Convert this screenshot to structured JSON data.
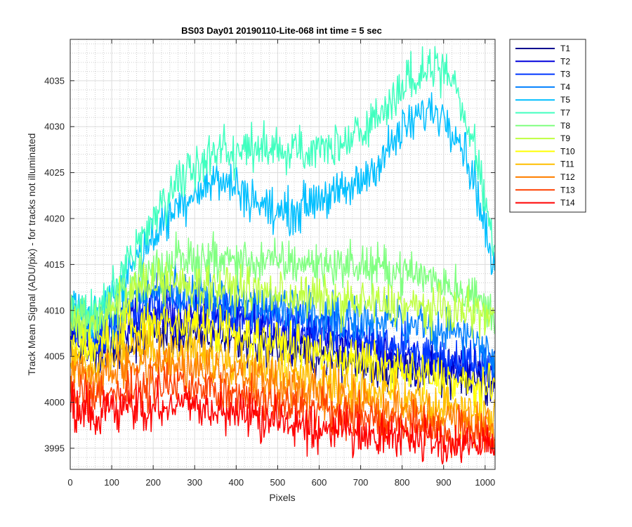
{
  "chart_data": {
    "type": "line",
    "title": "BS03 Day01 20190110-Lite-068 int time = 5 sec",
    "xlabel": "Pixels",
    "ylabel": "Track Mean Signal (ADU/pix) - for tracks not illuminated",
    "xlim": [
      0,
      1024
    ],
    "ylim": [
      3992.7,
      4039.5
    ],
    "x_ticks": [
      0,
      100,
      200,
      300,
      400,
      500,
      600,
      700,
      800,
      900,
      1000
    ],
    "y_ticks": [
      3995,
      4000,
      4005,
      4010,
      4015,
      4020,
      4025,
      4030,
      4035
    ],
    "grid": "major and minor",
    "legend_position": "outside-right",
    "noise_amplitude_approx": 1.2,
    "series": [
      {
        "name": "T1",
        "color": "#00008f",
        "x": [
          0,
          50,
          100,
          150,
          200,
          250,
          300,
          350,
          400,
          450,
          500,
          550,
          600,
          650,
          700,
          750,
          800,
          850,
          900,
          950,
          1000,
          1024
        ],
        "values": [
          4007.0,
          4004.5,
          4005.2,
          4006.5,
          4007.5,
          4007.5,
          4007.2,
          4007.0,
          4006.8,
          4006.3,
          4006.0,
          4005.5,
          4005.0,
          4004.7,
          4004.3,
          4004.0,
          4003.7,
          4003.4,
          4003.1,
          4002.8,
          4002.5,
          4002.3
        ]
      },
      {
        "name": "T2",
        "color": "#0000dc",
        "x": [
          0,
          50,
          100,
          150,
          200,
          250,
          300,
          350,
          400,
          450,
          500,
          550,
          600,
          650,
          700,
          750,
          800,
          850,
          900,
          950,
          1000,
          1024
        ],
        "values": [
          4008.0,
          4006.0,
          4007.0,
          4008.5,
          4009.5,
          4009.5,
          4009.3,
          4009.0,
          4008.8,
          4008.4,
          4008.0,
          4007.5,
          4007.0,
          4006.5,
          4006.0,
          4005.5,
          4005.0,
          4004.5,
          4004.0,
          4003.6,
          4003.2,
          4003.0
        ]
      },
      {
        "name": "T3",
        "color": "#0038ff",
        "x": [
          0,
          50,
          100,
          150,
          200,
          250,
          300,
          350,
          400,
          450,
          500,
          550,
          600,
          650,
          700,
          750,
          800,
          850,
          900,
          950,
          1000,
          1024
        ],
        "values": [
          4008.8,
          4007.0,
          4008.0,
          4009.8,
          4010.8,
          4010.8,
          4010.6,
          4010.3,
          4010.0,
          4009.5,
          4009.0,
          4008.5,
          4008.0,
          4007.5,
          4007.0,
          4006.5,
          4006.0,
          4005.5,
          4005.0,
          4004.5,
          4004.0,
          4003.8
        ]
      },
      {
        "name": "T4",
        "color": "#0080ff",
        "x": [
          0,
          50,
          100,
          150,
          200,
          250,
          300,
          350,
          400,
          450,
          500,
          550,
          600,
          650,
          700,
          750,
          800,
          850,
          900,
          950,
          1000,
          1024
        ],
        "values": [
          4009.5,
          4008.0,
          4009.0,
          4011.0,
          4012.0,
          4012.0,
          4011.8,
          4011.5,
          4011.2,
          4010.8,
          4010.4,
          4010.0,
          4009.6,
          4009.3,
          4009.0,
          4008.7,
          4008.4,
          4008.2,
          4008.0,
          4007.5,
          4006.0,
          4005.0
        ]
      },
      {
        "name": "T5",
        "color": "#00bfff",
        "x": [
          0,
          50,
          100,
          150,
          200,
          250,
          300,
          350,
          400,
          450,
          500,
          550,
          600,
          650,
          700,
          750,
          800,
          850,
          875,
          900,
          925,
          950,
          975,
          1000,
          1024
        ],
        "values": [
          4010.5,
          4009.0,
          4011.0,
          4015.0,
          4018.0,
          4021.0,
          4023.0,
          4024.2,
          4023.5,
          4021.8,
          4020.5,
          4021.0,
          4022.5,
          4022.5,
          4024.0,
          4026.5,
          4029.5,
          4031.5,
          4031.8,
          4031.2,
          4030.0,
          4027.5,
          4024.0,
          4019.0,
          4013.0
        ]
      },
      {
        "name": "T7",
        "color": "#40ffbf",
        "x": [
          0,
          50,
          100,
          150,
          200,
          250,
          300,
          350,
          400,
          450,
          500,
          550,
          600,
          650,
          700,
          750,
          800,
          850,
          875,
          900,
          925,
          950,
          975,
          1000,
          1024
        ],
        "values": [
          4010.5,
          4009.5,
          4012.0,
          4016.5,
          4020.0,
          4023.5,
          4026.0,
          4027.5,
          4027.5,
          4027.0,
          4027.3,
          4027.8,
          4028.0,
          4028.2,
          4029.5,
          4031.5,
          4034.0,
          4036.2,
          4036.6,
          4036.2,
          4034.5,
          4031.5,
          4027.5,
          4022.0,
          4016.0
        ]
      },
      {
        "name": "T8",
        "color": "#80ff80",
        "x": [
          0,
          50,
          100,
          150,
          200,
          250,
          300,
          350,
          400,
          450,
          500,
          550,
          600,
          650,
          700,
          750,
          800,
          850,
          900,
          950,
          1000,
          1024
        ],
        "values": [
          4009.5,
          4008.5,
          4010.5,
          4013.0,
          4014.5,
          4015.3,
          4015.5,
          4015.5,
          4015.5,
          4015.3,
          4015.2,
          4015.2,
          4015.0,
          4015.0,
          4014.8,
          4014.5,
          4014.2,
          4013.8,
          4013.2,
          4012.2,
          4010.5,
          4009.5
        ]
      },
      {
        "name": "T9",
        "color": "#bfff40",
        "x": [
          0,
          50,
          100,
          150,
          200,
          250,
          300,
          350,
          400,
          450,
          500,
          550,
          600,
          650,
          700,
          750,
          800,
          850,
          900,
          950,
          1000,
          1024
        ],
        "values": [
          4008.5,
          4008.0,
          4010.0,
          4012.0,
          4013.0,
          4013.0,
          4012.8,
          4012.5,
          4012.3,
          4012.0,
          4011.7,
          4011.5,
          4011.3,
          4011.0,
          4010.8,
          4010.6,
          4010.4,
          4010.2,
          4010.0,
          4009.8,
          4009.5,
          4009.3
        ]
      },
      {
        "name": "T10",
        "color": "#ffff00",
        "x": [
          0,
          50,
          100,
          150,
          200,
          250,
          300,
          350,
          400,
          450,
          500,
          550,
          600,
          650,
          700,
          750,
          800,
          850,
          900,
          950,
          1000,
          1024
        ],
        "values": [
          4006.0,
          4005.5,
          4006.8,
          4008.0,
          4008.6,
          4008.6,
          4008.4,
          4008.0,
          4007.5,
          4006.9,
          4006.4,
          4005.9,
          4005.4,
          4004.9,
          4004.4,
          4003.9,
          4003.4,
          4002.9,
          4002.4,
          4001.9,
          4001.4,
          4001.1
        ]
      },
      {
        "name": "T11",
        "color": "#ffbf00",
        "x": [
          0,
          50,
          100,
          150,
          200,
          250,
          300,
          350,
          400,
          450,
          500,
          550,
          600,
          650,
          700,
          750,
          800,
          850,
          900,
          950,
          1000,
          1024
        ],
        "values": [
          4004.5,
          4003.8,
          4004.8,
          4005.5,
          4005.8,
          4005.8,
          4005.5,
          4005.0,
          4004.5,
          4004.0,
          4003.5,
          4003.0,
          4002.5,
          4002.0,
          4001.5,
          4001.0,
          4000.5,
          4000.0,
          3999.6,
          3999.2,
          3998.8,
          3998.6
        ]
      },
      {
        "name": "T12",
        "color": "#ff8000",
        "x": [
          0,
          50,
          100,
          150,
          200,
          250,
          300,
          350,
          400,
          450,
          500,
          550,
          600,
          650,
          700,
          750,
          800,
          850,
          900,
          950,
          1000,
          1024
        ],
        "values": [
          4003.0,
          4002.5,
          4003.2,
          4003.8,
          4004.0,
          4004.0,
          4003.7,
          4003.3,
          4002.9,
          4002.5,
          4002.0,
          4001.5,
          4001.0,
          4000.5,
          4000.0,
          3999.5,
          3999.1,
          3998.7,
          3998.3,
          3997.9,
          3997.5,
          3997.3
        ]
      },
      {
        "name": "T13",
        "color": "#ff4000",
        "x": [
          0,
          50,
          100,
          150,
          200,
          250,
          300,
          350,
          400,
          450,
          500,
          550,
          600,
          650,
          700,
          750,
          800,
          850,
          900,
          950,
          1000,
          1024
        ],
        "values": [
          4001.2,
          4000.5,
          4001.2,
          4001.8,
          4002.0,
          4002.0,
          4001.7,
          4001.3,
          4000.9,
          4000.5,
          4000.0,
          3999.5,
          3999.0,
          3998.6,
          3998.2,
          3997.8,
          3997.5,
          3997.2,
          3996.9,
          3996.6,
          3996.3,
          3996.1
        ]
      },
      {
        "name": "T14",
        "color": "#ff0000",
        "x": [
          0,
          50,
          100,
          150,
          200,
          250,
          300,
          350,
          400,
          450,
          500,
          550,
          600,
          650,
          700,
          750,
          800,
          850,
          900,
          950,
          1000,
          1024
        ],
        "values": [
          3999.2,
          3998.6,
          3999.0,
          3999.5,
          3999.8,
          3999.8,
          3999.5,
          3999.2,
          3998.8,
          3998.4,
          3998.0,
          3997.6,
          3997.3,
          3997.0,
          3996.7,
          3996.4,
          3996.1,
          3995.9,
          3995.7,
          3995.5,
          3995.3,
          3995.2
        ]
      }
    ]
  }
}
